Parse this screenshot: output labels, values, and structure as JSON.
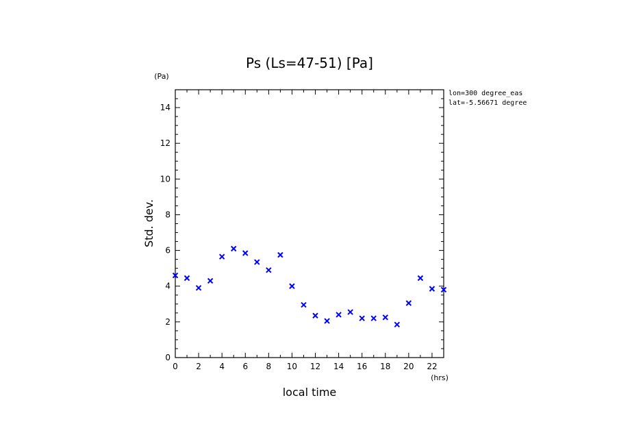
{
  "chart_data": {
    "type": "scatter",
    "title": "Ps (Ls=47-51) [Pa]",
    "xlabel": "local time",
    "ylabel": "Std. dev.",
    "x_unit": "(hrs)",
    "y_unit": "(Pa)",
    "xlim": [
      0,
      23
    ],
    "ylim": [
      0,
      15
    ],
    "x_ticks": [
      0,
      2,
      4,
      6,
      8,
      10,
      12,
      14,
      16,
      18,
      20,
      22
    ],
    "y_ticks": [
      0,
      2,
      4,
      6,
      8,
      10,
      12,
      14
    ],
    "marker": "x",
    "color": "#0000ff",
    "annotations": [
      "lon=300 degree_eas",
      "lat=-5.56671 degree"
    ],
    "series": [
      {
        "x": [
          0,
          1,
          2,
          3,
          4,
          5,
          6,
          7,
          8,
          9,
          10,
          11,
          12,
          13,
          14,
          15,
          16,
          17,
          18,
          19,
          20,
          21,
          22,
          23
        ],
        "values": [
          4.6,
          4.45,
          3.9,
          4.3,
          5.65,
          6.1,
          5.85,
          5.35,
          4.9,
          5.75,
          4.0,
          2.95,
          2.35,
          2.05,
          2.4,
          2.55,
          2.2,
          2.2,
          2.25,
          1.85,
          3.05,
          4.45,
          3.85,
          3.8
        ]
      }
    ]
  }
}
